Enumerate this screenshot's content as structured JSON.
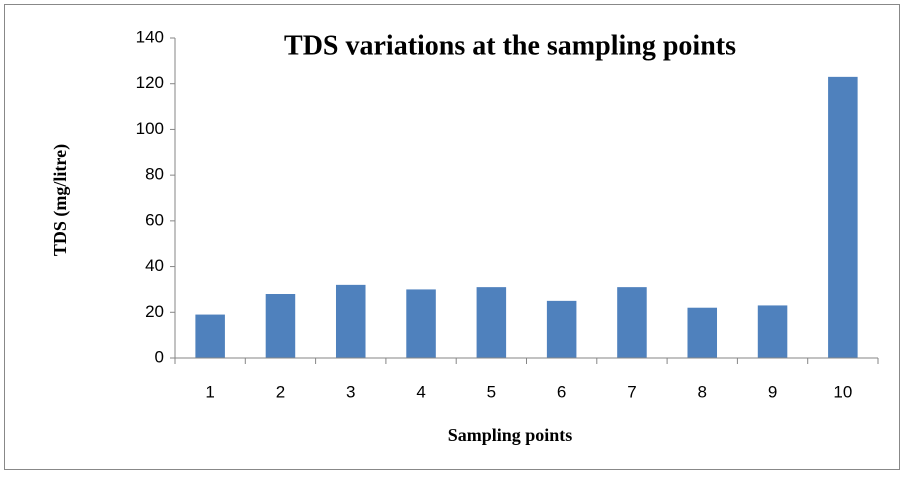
{
  "chart_data": {
    "type": "bar",
    "title": "TDS variations at the sampling points",
    "x_label": "Sampling points",
    "y_label": "TDS (mg/litre)",
    "categories": [
      "1",
      "2",
      "3",
      "4",
      "5",
      "6",
      "7",
      "8",
      "9",
      "10"
    ],
    "values": [
      19,
      28,
      32,
      30,
      31,
      25,
      31,
      22,
      23,
      123
    ],
    "color": "#4f81bd",
    "ylim": [
      0,
      140
    ],
    "yticks": [
      0,
      20,
      40,
      60,
      80,
      100,
      120,
      140
    ],
    "grid": false
  }
}
